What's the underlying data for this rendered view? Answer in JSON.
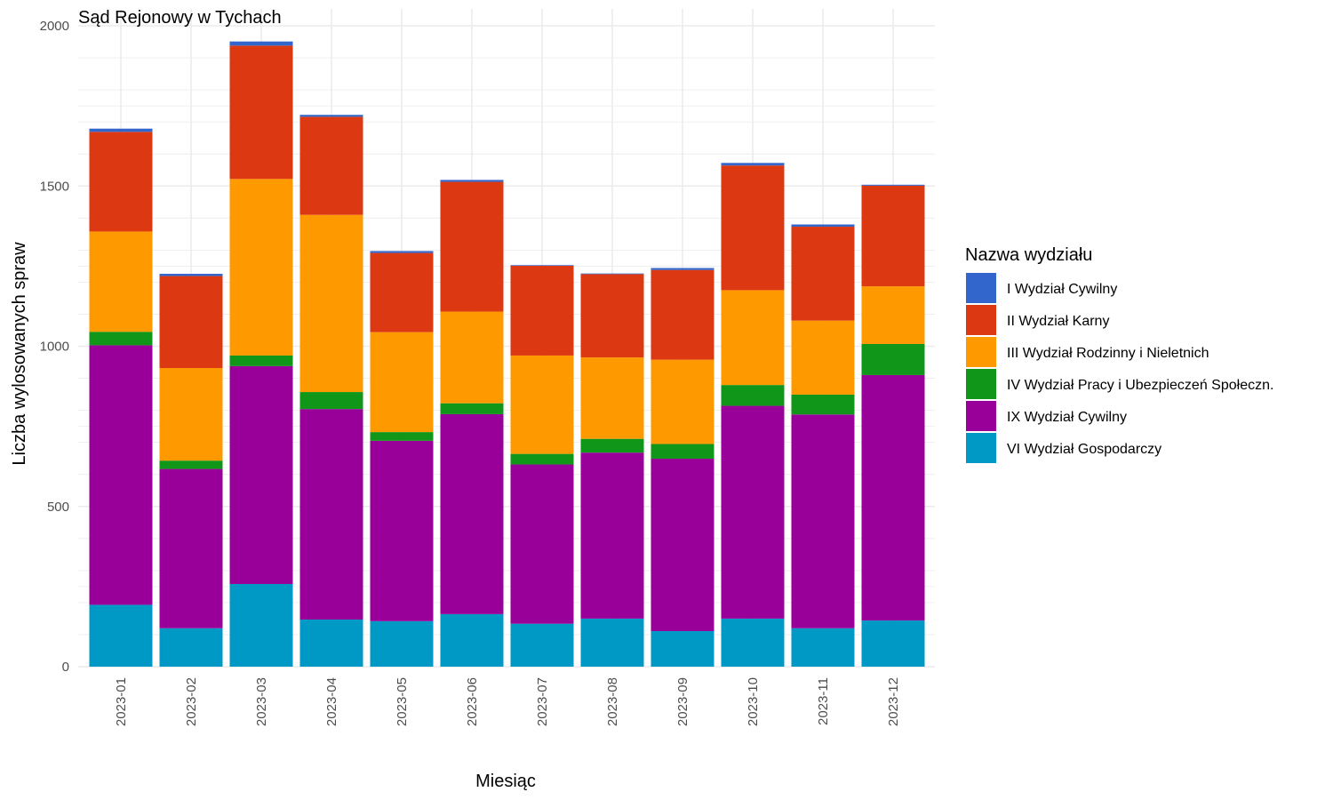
{
  "chart_data": {
    "type": "bar",
    "stacked": true,
    "title": "Sąd Rejonowy w Tychach",
    "xlabel": "Miesiąc",
    "ylabel": "Liczba wylosowanych spraw",
    "ylim": [
      0,
      2000
    ],
    "yticks": [
      "0",
      "500",
      "1000",
      "1500",
      "2000"
    ],
    "grid": true,
    "legend_title": "Nazwa wydziału",
    "legend_position": "right",
    "categories": [
      "2023-01",
      "2023-02",
      "2023-03",
      "2023-04",
      "2023-05",
      "2023-06",
      "2023-07",
      "2023-08",
      "2023-09",
      "2023-10",
      "2023-11",
      "2023-12"
    ],
    "series": [
      {
        "name": "VI Wydział Gospodarczy",
        "color": "#0099C6",
        "values": [
          193,
          120,
          258,
          147,
          142,
          164,
          134,
          150,
          111,
          150,
          120,
          144
        ]
      },
      {
        "name": "IX Wydział Cywilny",
        "color": "#990099",
        "values": [
          810,
          497,
          680,
          657,
          563,
          624,
          497,
          518,
          538,
          664,
          667,
          766
        ]
      },
      {
        "name": "IV Wydział Pracy i Ubezpieczeń Społeczn.",
        "color": "#109618",
        "values": [
          42,
          26,
          33,
          53,
          27,
          34,
          33,
          43,
          46,
          65,
          62,
          97
        ]
      },
      {
        "name": "III Wydział Rodzinny i Nieletnich",
        "color": "#FF9900",
        "values": [
          313,
          289,
          551,
          553,
          312,
          286,
          307,
          254,
          263,
          296,
          231,
          180
        ]
      },
      {
        "name": "II Wydział Karny",
        "color": "#DC3912",
        "values": [
          311,
          287,
          416,
          306,
          247,
          405,
          280,
          260,
          280,
          389,
          293,
          314
        ]
      },
      {
        "name": "I Wydział Cywilny",
        "color": "#3366CC",
        "values": [
          10,
          7,
          13,
          6,
          6,
          6,
          2,
          2,
          6,
          8,
          7,
          3
        ]
      }
    ],
    "legend_order": [
      "I Wydział Cywilny",
      "II Wydział Karny",
      "III Wydział Rodzinny i Nieletnich",
      "IV Wydział Pracy i Ubezpieczeń Społeczn.",
      "IX Wydział Cywilny",
      "VI Wydział Gospodarczy"
    ]
  }
}
